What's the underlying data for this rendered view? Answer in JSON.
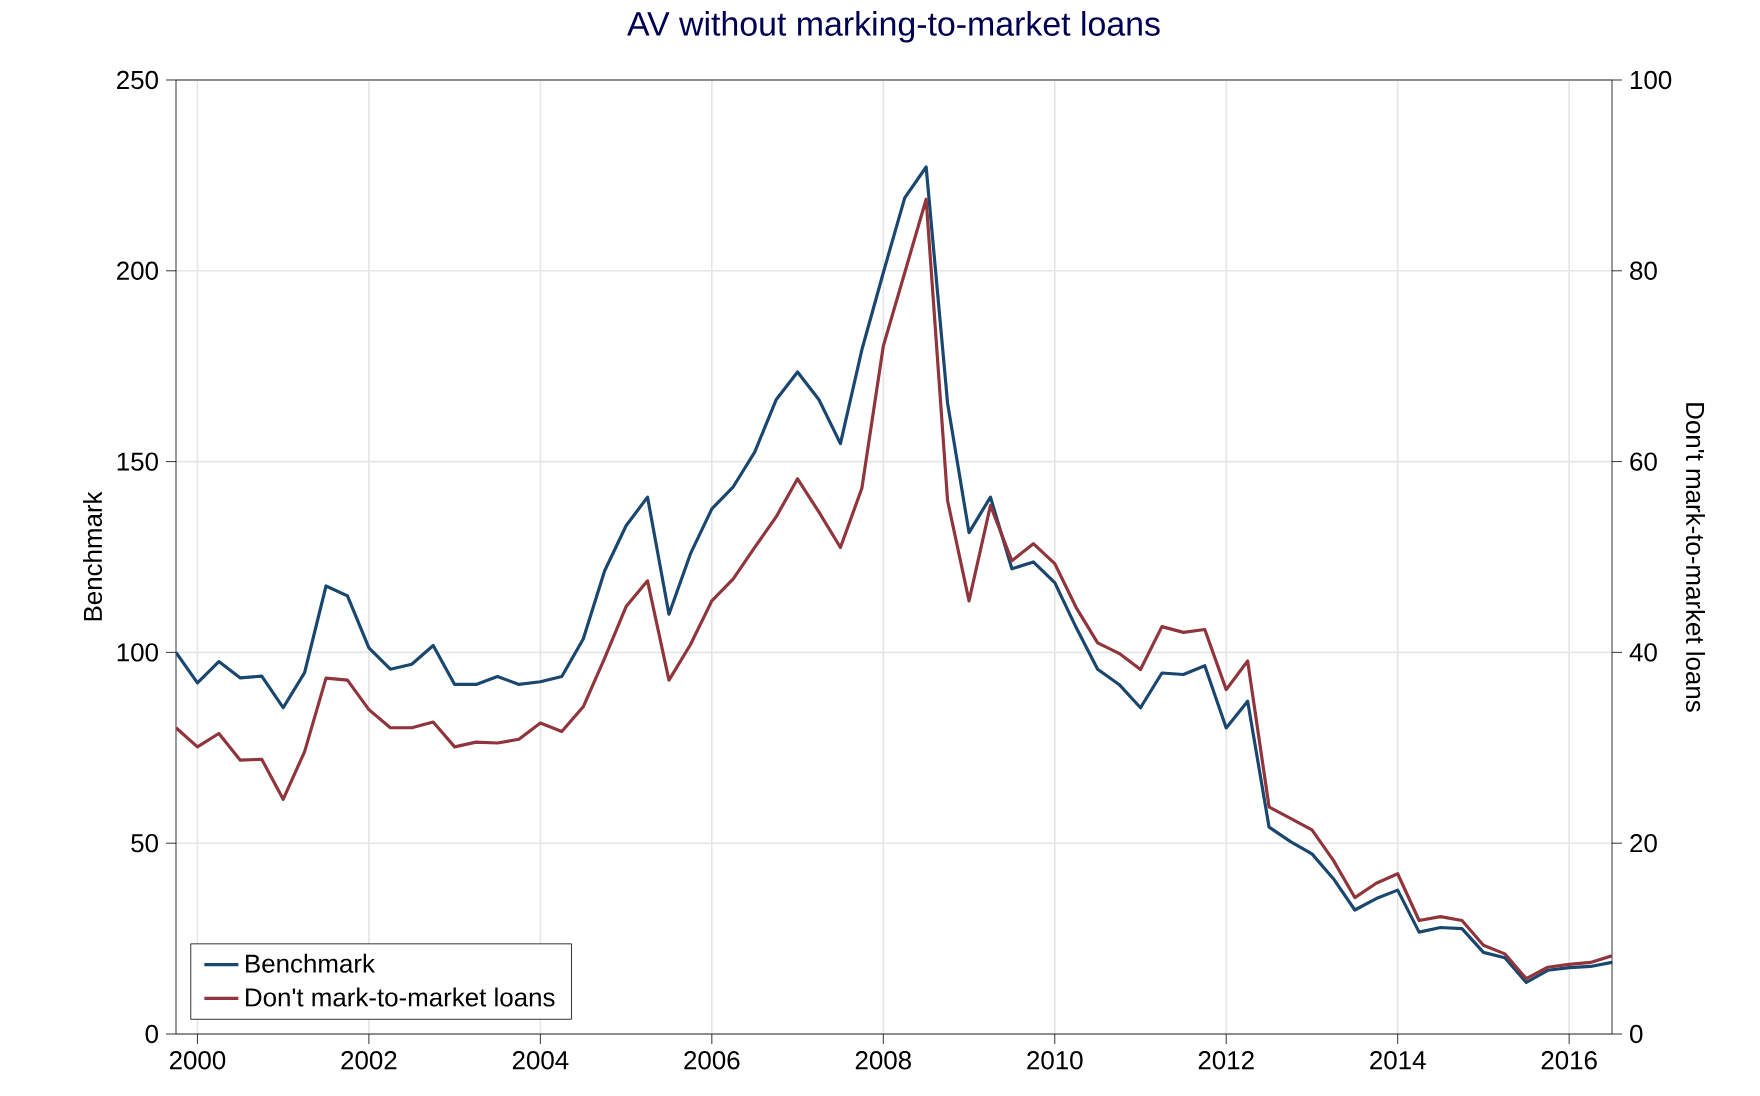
{
  "chart_data": {
    "type": "line",
    "title": "AV without marking-to-market loans",
    "ylabel": "Benchmark",
    "y2label": "Don't mark-to-market loans",
    "x": [
      1999.75,
      2000,
      2000.25,
      2000.5,
      2000.75,
      2001,
      2001.25,
      2001.5,
      2001.75,
      2002,
      2002.25,
      2002.5,
      2002.75,
      2003,
      2003.25,
      2003.5,
      2003.75,
      2004,
      2004.25,
      2004.5,
      2004.75,
      2005,
      2005.25,
      2005.5,
      2005.75,
      2006,
      2006.25,
      2006.5,
      2006.75,
      2007,
      2007.25,
      2007.5,
      2007.75,
      2008,
      2008.25,
      2008.5,
      2008.75,
      2009,
      2009.25,
      2009.5,
      2009.75,
      2010,
      2010.25,
      2010.5,
      2010.75,
      2011,
      2011.25,
      2011.5,
      2011.75,
      2012,
      2012.25,
      2012.5,
      2012.75,
      2013,
      2013.25,
      2013.5,
      2013.75,
      2014,
      2014.25,
      2014.5,
      2014.75,
      2015,
      2015.25,
      2015.5,
      2015.75,
      2016,
      2016.25,
      2016.5
    ],
    "xlim": [
      1999.75,
      2016.5
    ],
    "xticks": [
      2000,
      2002,
      2004,
      2006,
      2008,
      2010,
      2012,
      2014,
      2016
    ],
    "ylim": [
      0,
      250
    ],
    "yticks": [
      0,
      50,
      100,
      150,
      200,
      250
    ],
    "y2lim": [
      0,
      100
    ],
    "y2ticks": [
      0,
      20,
      40,
      60,
      80,
      100
    ],
    "grid": true,
    "legend": "bottom left",
    "series": [
      {
        "name": "Benchmark",
        "color": "#1a476f",
        "axis": "y",
        "values": [
          100,
          92,
          97.6,
          93.3,
          93.8,
          85.5,
          94.7,
          117.4,
          114.8,
          101.2,
          95.6,
          96.9,
          101.8,
          91.6,
          91.6,
          93.7,
          91.6,
          92.3,
          93.7,
          103.5,
          121.4,
          133.2,
          140.7,
          110,
          125.8,
          137.6,
          143.4,
          152.5,
          166.2,
          173.5,
          166.2,
          154.7,
          179.3,
          199.5,
          219.1,
          227.2,
          165.3,
          131.4,
          140.7,
          121.9,
          123.7,
          118.3,
          106.5,
          95.6,
          91.6,
          85.5,
          94.6,
          94.2,
          96.5,
          80.2,
          87.2,
          54.2,
          50.4,
          47.2,
          40.7,
          32.5,
          35.5,
          37.7,
          26.7,
          27.9,
          27.6,
          21.4,
          20,
          13.5,
          16.7,
          17.4,
          17.7,
          18.8
        ]
      },
      {
        "name": "Don't mark-to-market loans",
        "color": "#90353b",
        "axis": "y2",
        "values": [
          32.1,
          30.1,
          31.5,
          28.7,
          28.8,
          24.6,
          29.6,
          37.3,
          37.1,
          34,
          32.1,
          32.1,
          32.7,
          30.1,
          30.6,
          30.5,
          30.9,
          32.6,
          31.7,
          34.3,
          39.4,
          44.8,
          47.5,
          37.1,
          40.8,
          45.4,
          47.7,
          51,
          54.2,
          58.2,
          54.7,
          51,
          57.2,
          72.1,
          79.8,
          87.5,
          55.9,
          45.4,
          55.4,
          49.6,
          51.4,
          49.3,
          44.7,
          41,
          39.9,
          38.2,
          42.7,
          42.1,
          42.4,
          36.1,
          39.1,
          23.8,
          22.6,
          21.4,
          18.2,
          14.3,
          15.8,
          16.8,
          11.9,
          12.3,
          11.9,
          9.3,
          8.4,
          5.8,
          7,
          7.3,
          7.5,
          8.2
        ]
      }
    ]
  }
}
